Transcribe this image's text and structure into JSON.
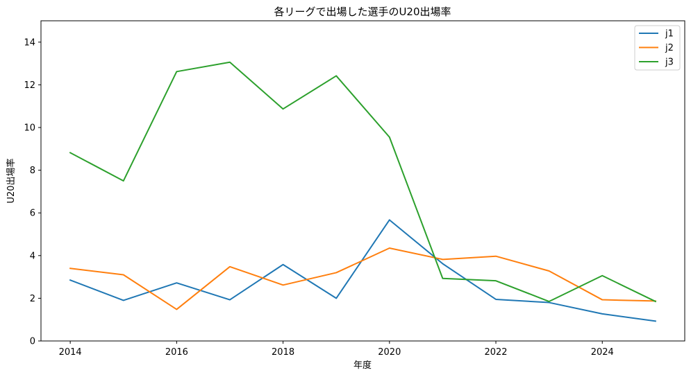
{
  "chart_data": {
    "type": "line",
    "title": "各リーグで出場した選手のU20出場率",
    "xlabel": "年度",
    "ylabel": "U20出場率",
    "x": [
      2014,
      2015,
      2016,
      2017,
      2018,
      2019,
      2020,
      2021,
      2022,
      2023,
      2024,
      2025
    ],
    "xlim": [
      2013.45,
      2025.55
    ],
    "ylim": [
      0,
      15
    ],
    "xticks": [
      2014,
      2016,
      2018,
      2020,
      2022,
      2024
    ],
    "yticks": [
      0,
      2,
      4,
      6,
      8,
      10,
      12,
      14
    ],
    "grid": false,
    "legend_position": "top-right",
    "series": [
      {
        "name": "j1",
        "color": "#1f77b4",
        "values": [
          2.85,
          1.9,
          2.72,
          1.93,
          3.58,
          2.0,
          5.67,
          3.62,
          1.95,
          1.8,
          1.27,
          0.93
        ]
      },
      {
        "name": "j2",
        "color": "#ff7f0e",
        "values": [
          3.4,
          3.1,
          1.48,
          3.48,
          2.62,
          3.2,
          4.35,
          3.82,
          3.97,
          3.28,
          1.93,
          1.87
        ]
      },
      {
        "name": "j3",
        "color": "#2ca02c",
        "values": [
          8.82,
          7.5,
          12.62,
          13.06,
          10.87,
          12.42,
          9.55,
          2.93,
          2.82,
          1.85,
          3.06,
          1.85
        ]
      }
    ]
  }
}
